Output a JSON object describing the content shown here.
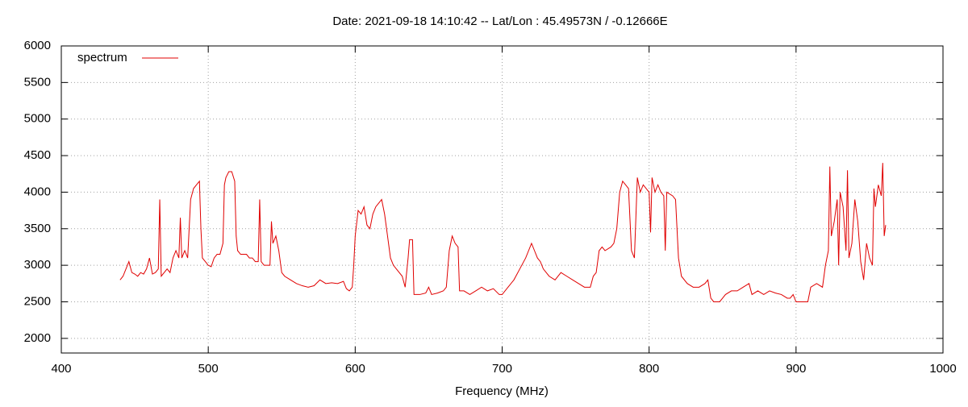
{
  "chart_data": {
    "type": "line",
    "title": "Date: 2021-09-18 14:10:42  --  Lat/Lon : 45.49573N / -0.12666E",
    "x_label": "Frequency (MHz)",
    "xlim": [
      400,
      1000
    ],
    "xticks": [
      400,
      500,
      600,
      700,
      800,
      900,
      1000
    ],
    "ylim": [
      1800,
      6000
    ],
    "yticks": [
      2000,
      2500,
      3000,
      3500,
      4000,
      4500,
      5000,
      5500,
      6000
    ],
    "grid": true,
    "legend": "top-left",
    "x": [
      440,
      442,
      444,
      446,
      448,
      450,
      452,
      454,
      456,
      458,
      460,
      462,
      464,
      466,
      467,
      468,
      470,
      472,
      474,
      476,
      478,
      480,
      481,
      482,
      484,
      486,
      488,
      490,
      492,
      494,
      495,
      496,
      498,
      500,
      502,
      504,
      506,
      508,
      510,
      511,
      512,
      514,
      516,
      518,
      519,
      520,
      522,
      524,
      526,
      528,
      530,
      532,
      534,
      535,
      536,
      538,
      540,
      542,
      543,
      544,
      546,
      548,
      550,
      552,
      556,
      560,
      564,
      568,
      572,
      576,
      580,
      584,
      588,
      592,
      594,
      596,
      598,
      599,
      600,
      602,
      604,
      606,
      608,
      610,
      612,
      614,
      616,
      618,
      620,
      622,
      624,
      626,
      628,
      632,
      634,
      636,
      637,
      639,
      640,
      644,
      648,
      650,
      652,
      656,
      660,
      662,
      664,
      666,
      668,
      670,
      671,
      674,
      678,
      682,
      686,
      690,
      694,
      698,
      700,
      704,
      708,
      712,
      716,
      718,
      720,
      722,
      724,
      726,
      728,
      732,
      736,
      740,
      744,
      748,
      752,
      756,
      760,
      762,
      764,
      766,
      768,
      770,
      774,
      776,
      778,
      780,
      782,
      784,
      786,
      788,
      790,
      792,
      794,
      796,
      798,
      800,
      801,
      802,
      804,
      806,
      808,
      810,
      811,
      812,
      816,
      818,
      820,
      822,
      826,
      830,
      834,
      838,
      840,
      842,
      844,
      848,
      850,
      852,
      856,
      860,
      864,
      868,
      870,
      874,
      878,
      882,
      886,
      890,
      894,
      896,
      898,
      900,
      904,
      908,
      910,
      914,
      918,
      920,
      922,
      923,
      924,
      926,
      928,
      929,
      930,
      932,
      934,
      935,
      936,
      938,
      940,
      942,
      944,
      946,
      948,
      950,
      952,
      953,
      954,
      956,
      958,
      959,
      960,
      961
    ],
    "series": [
      {
        "name": "spectrum",
        "color": "#e00000",
        "values": [
          2800,
          2850,
          2950,
          3050,
          2900,
          2880,
          2850,
          2900,
          2880,
          2950,
          3100,
          2880,
          2900,
          2950,
          3900,
          2850,
          2900,
          2950,
          2900,
          3100,
          3200,
          3100,
          3650,
          3100,
          3200,
          3100,
          3900,
          4050,
          4100,
          4150,
          3500,
          3100,
          3050,
          3000,
          2980,
          3100,
          3150,
          3150,
          3300,
          4100,
          4200,
          4280,
          4280,
          4150,
          3400,
          3200,
          3150,
          3150,
          3150,
          3100,
          3100,
          3050,
          3050,
          3900,
          3050,
          3000,
          3000,
          3000,
          3600,
          3300,
          3400,
          3200,
          2900,
          2850,
          2800,
          2750,
          2720,
          2700,
          2720,
          2800,
          2750,
          2760,
          2750,
          2780,
          2680,
          2650,
          2700,
          3000,
          3400,
          3750,
          3700,
          3800,
          3550,
          3500,
          3700,
          3800,
          3850,
          3900,
          3700,
          3400,
          3100,
          3000,
          2950,
          2850,
          2700,
          3100,
          3350,
          3350,
          2600,
          2600,
          2620,
          2700,
          2600,
          2620,
          2650,
          2700,
          3200,
          3400,
          3300,
          3250,
          2650,
          2650,
          2600,
          2650,
          2700,
          2650,
          2680,
          2600,
          2600,
          2700,
          2800,
          2950,
          3100,
          3200,
          3300,
          3200,
          3100,
          3050,
          2950,
          2850,
          2800,
          2900,
          2850,
          2800,
          2750,
          2700,
          2700,
          2850,
          2900,
          3200,
          3250,
          3200,
          3250,
          3300,
          3500,
          4000,
          4150,
          4100,
          4050,
          3200,
          3100,
          4200,
          4000,
          4100,
          4050,
          4000,
          3450,
          4200,
          4000,
          4100,
          4000,
          3950,
          3200,
          4000,
          3950,
          3900,
          3100,
          2850,
          2750,
          2700,
          2700,
          2750,
          2800,
          2550,
          2500,
          2500,
          2550,
          2600,
          2650,
          2650,
          2700,
          2750,
          2600,
          2650,
          2600,
          2650,
          2620,
          2600,
          2550,
          2550,
          2600,
          2500,
          2500,
          2500,
          2700,
          2750,
          2700,
          3000,
          3200,
          4350,
          3400,
          3600,
          3900,
          3000,
          4000,
          3800,
          3200,
          4300,
          3100,
          3300,
          3900,
          3600,
          3050,
          2800,
          3300,
          3100,
          3000,
          4050,
          3800,
          4100,
          3950,
          4400,
          3400,
          3550
        ]
      }
    ]
  }
}
